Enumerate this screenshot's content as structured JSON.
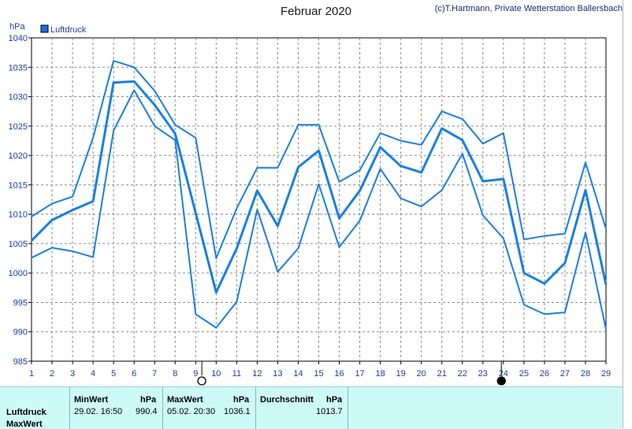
{
  "title": "Februar 2020",
  "credit": "(c)T.Hartmann, Private Wetterstation Ballersbach",
  "chart_data": {
    "type": "line",
    "unit_label": "hPa",
    "legend": "Luftdruck",
    "legend_color": "#1a6fe0",
    "line_color": "#1a7fe0",
    "ylim": [
      985,
      1040
    ],
    "y_ticks": [
      985,
      990,
      995,
      1000,
      1005,
      1010,
      1015,
      1020,
      1025,
      1030,
      1035,
      1040
    ],
    "x_ticks": [
      1,
      2,
      3,
      4,
      5,
      6,
      7,
      8,
      9,
      10,
      11,
      12,
      13,
      14,
      15,
      16,
      17,
      18,
      19,
      20,
      21,
      22,
      23,
      24,
      25,
      26,
      27,
      28,
      29
    ],
    "grid": true,
    "series": [
      {
        "role": "max",
        "values": [
          1009.6,
          1011.8,
          1013.0,
          1023.0,
          1036.1,
          1035.0,
          1031.0,
          1025.2,
          1023.0,
          1002.5,
          1011.0,
          1017.9,
          1017.9,
          1025.2,
          1025.2,
          1015.5,
          1017.5,
          1023.8,
          1022.5,
          1021.8,
          1027.5,
          1026.2,
          1022.0,
          1023.8,
          1005.7,
          1006.3,
          1006.7,
          1018.8,
          1007.5
        ]
      },
      {
        "role": "mean",
        "values": [
          1005.5,
          1009.0,
          1010.7,
          1012.2,
          1032.4,
          1032.6,
          1028.6,
          1023.7,
          1010.2,
          996.7,
          1004.2,
          1014.0,
          1008.0,
          1018.0,
          1020.8,
          1009.3,
          1014.0,
          1021.4,
          1018.2,
          1017.1,
          1024.6,
          1022.6,
          1015.6,
          1016.0,
          1000.0,
          998.2,
          1001.7,
          1014.1,
          998.0
        ]
      },
      {
        "role": "min",
        "values": [
          1002.6,
          1004.3,
          1003.7,
          1002.7,
          1024.2,
          1031.1,
          1025.0,
          1022.6,
          993.0,
          990.7,
          995.1,
          1010.8,
          1000.2,
          1004.2,
          1015.1,
          1004.4,
          1008.9,
          1017.7,
          1012.7,
          1011.3,
          1014.1,
          1020.3,
          1009.8,
          1005.9,
          994.6,
          993.0,
          993.3,
          1006.9,
          990.4
        ]
      }
    ],
    "moon_markers": [
      {
        "x": 9.3,
        "phase": "full"
      },
      {
        "x": 23.9,
        "phase": "new"
      }
    ]
  },
  "stats": {
    "row_label": "Luftdruck",
    "row_label2": "MaxWert",
    "min_header": "MinWert",
    "min_unit": "hPa",
    "min_datetime": "29.02.  16:50",
    "min_value": "990.4",
    "max_header": "MaxWert",
    "max_unit": "hPa",
    "max_datetime": "05.02.  20:30",
    "max_value": "1036.1",
    "avg_header": "Durchschnitt",
    "avg_unit": "hPa",
    "avg_value": "1013.7"
  }
}
